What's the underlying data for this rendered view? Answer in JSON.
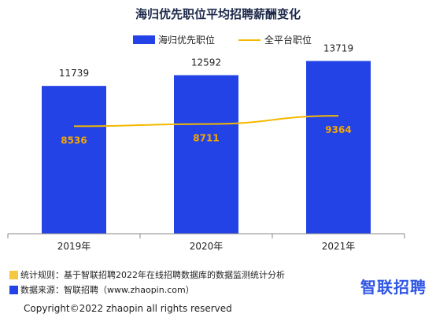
{
  "chart_data": {
    "type": "bar",
    "title": "海归优先职位平均招聘薪酬变化",
    "categories": [
      "2019年",
      "2020年",
      "2021年"
    ],
    "series": [
      {
        "name": "海归优先职位",
        "kind": "bar",
        "color": "#2343e6",
        "values": [
          11739,
          12592,
          13719
        ]
      },
      {
        "name": "全平台职位",
        "kind": "line",
        "color": "#f5b800",
        "values": [
          8536,
          8711,
          9364
        ]
      }
    ],
    "ylim": [
      0,
      14500
    ],
    "grid": false,
    "legend": "top-center"
  },
  "footer": {
    "rule_text": "统计规则：基于智联招聘2022年在线招聘数据库的数据监测统计分析",
    "source_text": "数据来源：智联招聘（www.zhaopin.com）",
    "brand": "智联招聘",
    "copyright": "Copyright©2022 zhaopin all rights reserved",
    "rule_color": "#f5c842",
    "source_color": "#2343e6"
  }
}
